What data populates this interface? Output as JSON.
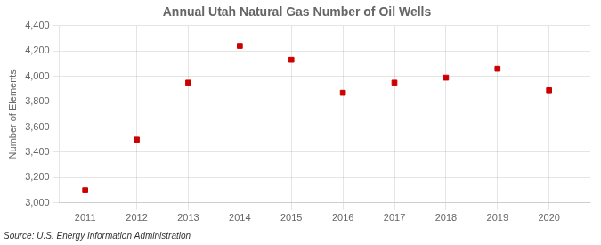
{
  "chart_data": {
    "type": "scatter",
    "title": "Annual Utah Natural Gas Number of Oil Wells",
    "ylabel": "Number of Elements",
    "annotation": "Source: U.S. Energy Information Administration",
    "x": [
      2011,
      2012,
      2013,
      2014,
      2015,
      2016,
      2017,
      2018,
      2019,
      2020
    ],
    "values": [
      3100,
      3500,
      3950,
      4240,
      4130,
      3870,
      3950,
      3990,
      4060,
      3890
    ],
    "color": "#cc0000",
    "marker": "square",
    "xlim": [
      2010.5,
      2020.8
    ],
    "xticks": [
      2011,
      2012,
      2013,
      2014,
      2015,
      2016,
      2017,
      2018,
      2019,
      2020
    ],
    "ylim": [
      3000,
      4400
    ],
    "yticks": [
      {
        "value": 3000,
        "label": "3,000"
      },
      {
        "value": 3200,
        "label": "3,200"
      },
      {
        "value": 3400,
        "label": "3,400"
      },
      {
        "value": 3600,
        "label": "3,600"
      },
      {
        "value": 3800,
        "label": "3,800"
      },
      {
        "value": 4000,
        "label": "4,000"
      },
      {
        "value": 4200,
        "label": "4,200"
      },
      {
        "value": 4400,
        "label": "4,400"
      }
    ],
    "grid": true
  }
}
